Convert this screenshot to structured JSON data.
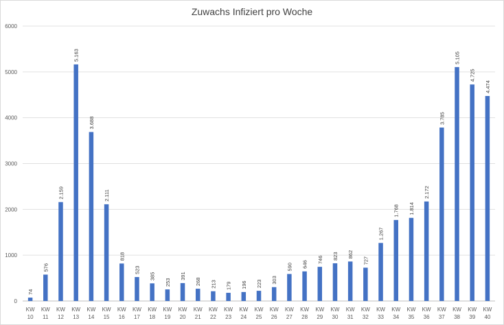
{
  "chart_data": {
    "type": "bar",
    "title": "Zuwachs Infiziert pro Woche",
    "xlabel": "",
    "ylabel": "",
    "ylim": [
      0,
      6000
    ],
    "yticks": [
      0,
      1000,
      2000,
      3000,
      4000,
      5000,
      6000
    ],
    "ytick_labels": [
      "0",
      "1000",
      "2000",
      "3000",
      "4000",
      "5000",
      "6000"
    ],
    "grid": true,
    "legend": "none",
    "bar_color": "#4472c4",
    "categories": [
      [
        "KW",
        "10"
      ],
      [
        "KW",
        "11"
      ],
      [
        "KW",
        "12"
      ],
      [
        "KW",
        "13"
      ],
      [
        "KW",
        "14"
      ],
      [
        "KW",
        "15"
      ],
      [
        "KW",
        "16"
      ],
      [
        "KW",
        "17"
      ],
      [
        "KW",
        "18"
      ],
      [
        "KW",
        "19"
      ],
      [
        "KW",
        "20"
      ],
      [
        "KW",
        "21"
      ],
      [
        "KW",
        "22"
      ],
      [
        "KW",
        "23"
      ],
      [
        "KW",
        "24"
      ],
      [
        "KW",
        "25"
      ],
      [
        "KW",
        "26"
      ],
      [
        "KW",
        "27"
      ],
      [
        "KW",
        "28"
      ],
      [
        "KW",
        "29"
      ],
      [
        "KW",
        "30"
      ],
      [
        "KW",
        "31"
      ],
      [
        "KW",
        "32"
      ],
      [
        "KW",
        "33"
      ],
      [
        "KW",
        "34"
      ],
      [
        "KW",
        "35"
      ],
      [
        "KW",
        "36"
      ],
      [
        "KW",
        "37"
      ],
      [
        "KW",
        "38"
      ],
      [
        "KW",
        "39"
      ],
      [
        "KW",
        "40"
      ]
    ],
    "values": [
      74,
      576,
      2159,
      5163,
      3688,
      2111,
      818,
      523,
      385,
      253,
      391,
      268,
      213,
      179,
      196,
      223,
      303,
      590,
      646,
      746,
      823,
      862,
      727,
      1267,
      1768,
      1814,
      2172,
      3785,
      5105,
      4725,
      4474
    ],
    "data_labels": [
      "74",
      "576",
      "2.159",
      "5.163",
      "3.688",
      "2.111",
      "818",
      "523",
      "385",
      "253",
      "391",
      "268",
      "213",
      "179",
      "196",
      "223",
      "303",
      "590",
      "646",
      "746",
      "823",
      "862",
      "727",
      "1.267",
      "1.768",
      "1.814",
      "2.172",
      "3.785",
      "5.105",
      "4.725",
      "4.474"
    ]
  }
}
